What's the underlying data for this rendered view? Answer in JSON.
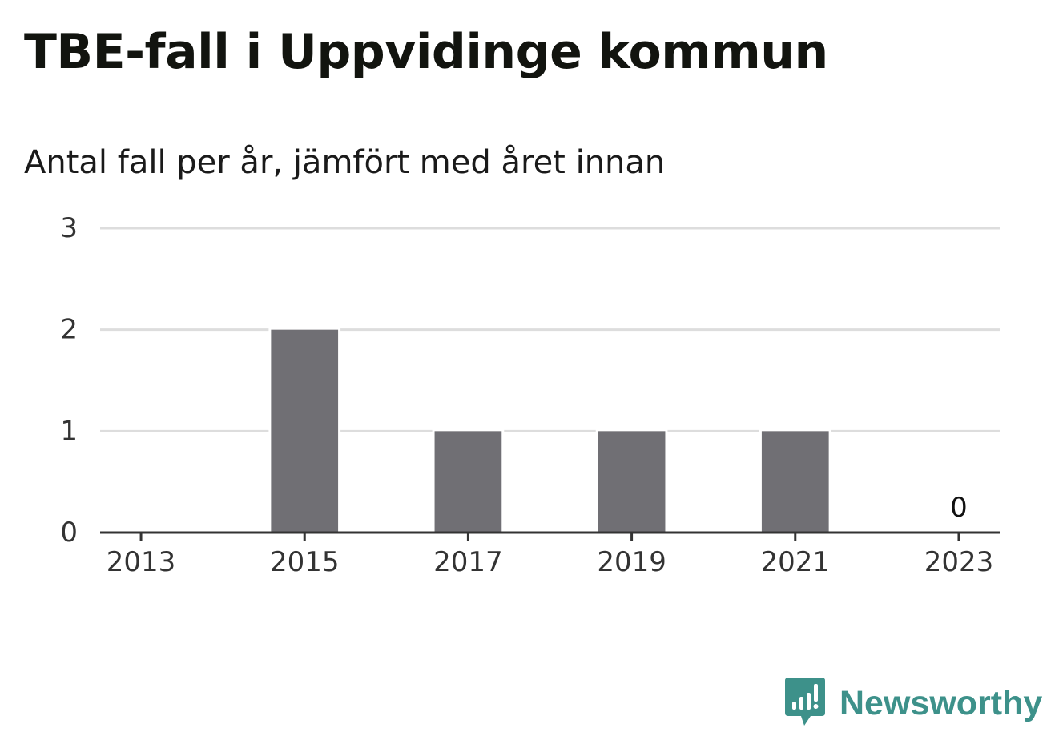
{
  "title": "TBE-fall i Uppvidinge kommun",
  "subtitle": "Antal fall per år, jämfört med året innan",
  "brand": "Newsworthy",
  "colors": {
    "bar": "#706f74",
    "grid": "#dddddd",
    "axis": "#333333",
    "tick_text": "#333333",
    "brand": "#3d918a"
  },
  "chart_data": {
    "type": "bar",
    "categories": [
      "2013",
      "2014",
      "2015",
      "2016",
      "2017",
      "2018",
      "2019",
      "2020",
      "2021",
      "2022",
      "2023"
    ],
    "tick_labels": [
      "2013",
      "2015",
      "2017",
      "2019",
      "2021",
      "2023"
    ],
    "values": [
      0,
      0,
      2,
      0,
      1,
      0,
      1,
      0,
      1,
      0,
      0
    ],
    "data_labels": [
      {
        "category": "2023",
        "text": "0"
      }
    ],
    "yticks": [
      "0",
      "1",
      "2",
      "3"
    ],
    "ylim": [
      0,
      3
    ],
    "grid": true,
    "legend": "none"
  }
}
